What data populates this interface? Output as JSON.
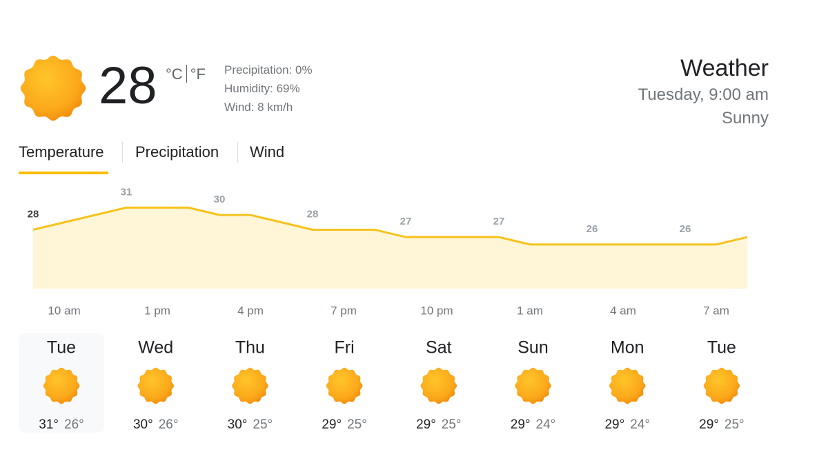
{
  "current": {
    "temperature": "28",
    "unit_c": "°C",
    "unit_f": "°F",
    "precipitation": "Precipitation: 0%",
    "humidity": "Humidity: 69%",
    "wind": "Wind: 8 km/h"
  },
  "header": {
    "title": "Weather",
    "datetime": "Tuesday, 9:00 am",
    "condition": "Sunny"
  },
  "tabs": [
    "Temperature",
    "Precipitation",
    "Wind"
  ],
  "chart_data": {
    "type": "area",
    "color": "#f6c21c",
    "fill": "#fef6d6",
    "x": [
      null,
      "10 am",
      null,
      null,
      "1 pm",
      null,
      null,
      "4 pm",
      null,
      null,
      "7 pm",
      null,
      null,
      "10 pm",
      null,
      null,
      "1 am",
      null,
      null,
      "4 am",
      null,
      null,
      "7 am",
      null
    ],
    "values": [
      28,
      29,
      30,
      31,
      31,
      31,
      30,
      30,
      29,
      28,
      28,
      28,
      27,
      27,
      27,
      27,
      26,
      26,
      26,
      26,
      26,
      26,
      26,
      27
    ],
    "ylim": [
      20,
      33
    ]
  },
  "forecast": [
    {
      "day": "Tue",
      "high": "31°",
      "low": "26°"
    },
    {
      "day": "Wed",
      "high": "30°",
      "low": "26°"
    },
    {
      "day": "Thu",
      "high": "30°",
      "low": "25°"
    },
    {
      "day": "Fri",
      "high": "29°",
      "low": "25°"
    },
    {
      "day": "Sat",
      "high": "29°",
      "low": "25°"
    },
    {
      "day": "Sun",
      "high": "29°",
      "low": "24°"
    },
    {
      "day": "Mon",
      "high": "29°",
      "low": "24°"
    },
    {
      "day": "Tue",
      "high": "29°",
      "low": "25°"
    }
  ]
}
